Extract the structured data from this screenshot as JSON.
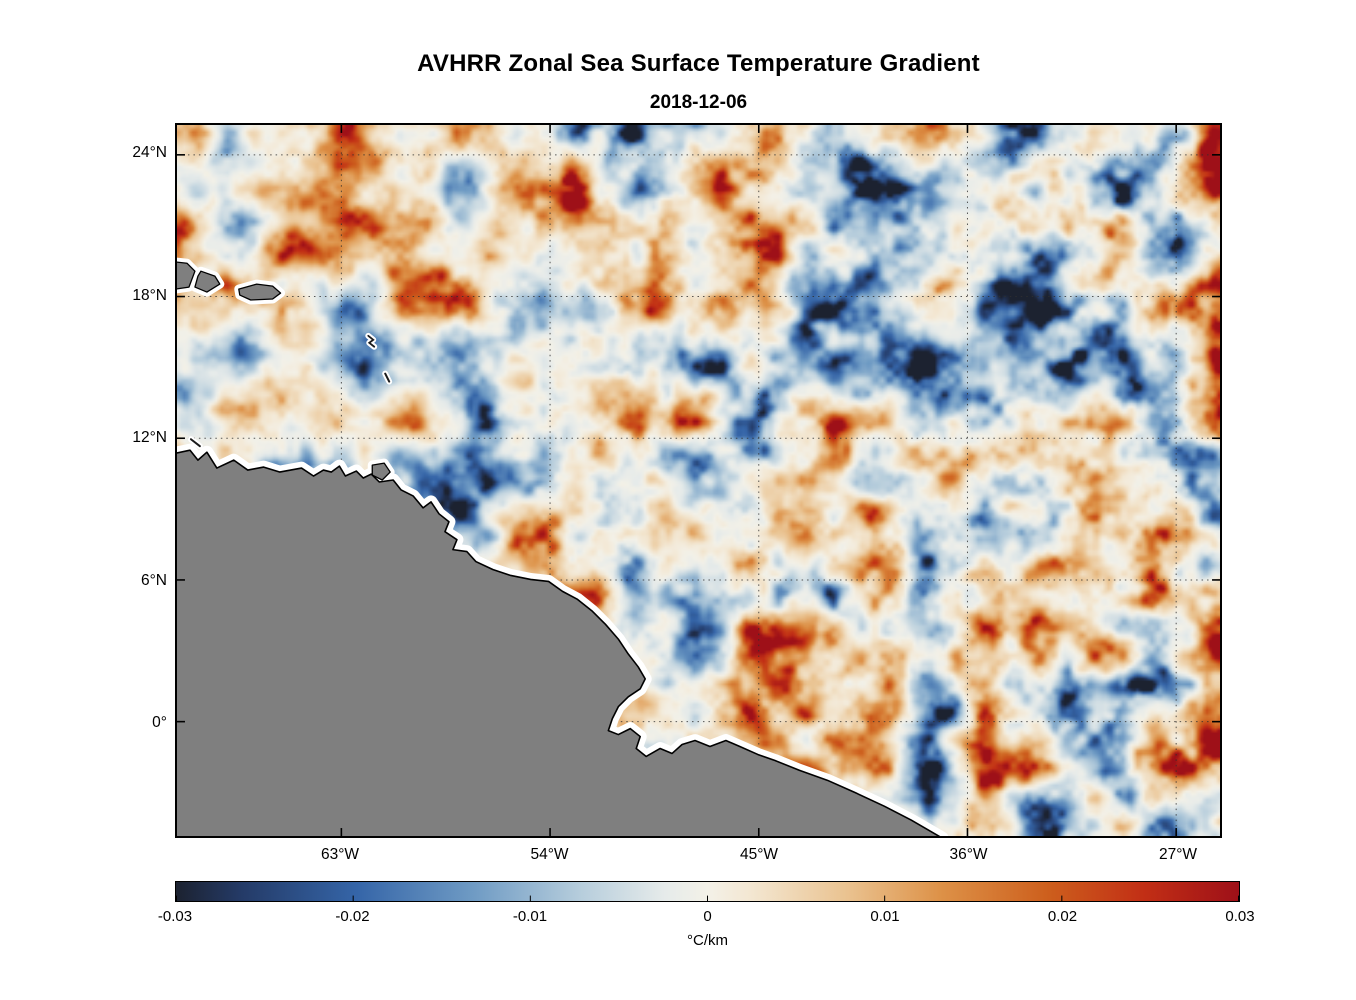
{
  "figure": {
    "title": "AVHRR Zonal Sea Surface Temperature Gradient",
    "subtitle": "2018-12-06"
  },
  "chart_data": {
    "type": "heatmap",
    "title": "AVHRR Zonal Sea Surface Temperature Gradient",
    "subtitle": "2018-12-06",
    "description": "Satellite map of zonal sea surface temperature gradient over the tropical western Atlantic and Caribbean; ocean field rendered with a diverging blue-white-red colormap, land masked in gray with a white coastal data-gap strip",
    "xlabel": "",
    "ylabel": "",
    "x_ticks": [
      "63°W",
      "54°W",
      "45°W",
      "36°W",
      "27°W"
    ],
    "y_ticks": [
      "24°N",
      "18°N",
      "12°N",
      "6°N",
      "0°"
    ],
    "grid": true,
    "value_range": [
      -0.03,
      0.03
    ],
    "units": "°C/km",
    "land_color": "#7f7f7f",
    "coast_gap_color": "#ffffff",
    "colorbar": {
      "orientation": "horizontal",
      "label": "°C/km",
      "ticks": [
        "-0.03",
        "-0.02",
        "-0.01",
        "0",
        "0.01",
        "0.02",
        "0.03"
      ],
      "min": -0.03,
      "max": 0.03,
      "stops": [
        {
          "pos": 0.0,
          "color": "#1c2230"
        },
        {
          "pos": 0.06,
          "color": "#243a66"
        },
        {
          "pos": 0.17,
          "color": "#3565a8"
        },
        {
          "pos": 0.28,
          "color": "#6f9bc4"
        },
        {
          "pos": 0.38,
          "color": "#b6cddc"
        },
        {
          "pos": 0.46,
          "color": "#e6ebea"
        },
        {
          "pos": 0.5,
          "color": "#f3f1e8"
        },
        {
          "pos": 0.54,
          "color": "#f3e7d2"
        },
        {
          "pos": 0.63,
          "color": "#eac391"
        },
        {
          "pos": 0.72,
          "color": "#dd9147"
        },
        {
          "pos": 0.82,
          "color": "#cd5f1d"
        },
        {
          "pos": 0.91,
          "color": "#c22f15"
        },
        {
          "pos": 1.0,
          "color": "#9e1018"
        }
      ]
    }
  }
}
